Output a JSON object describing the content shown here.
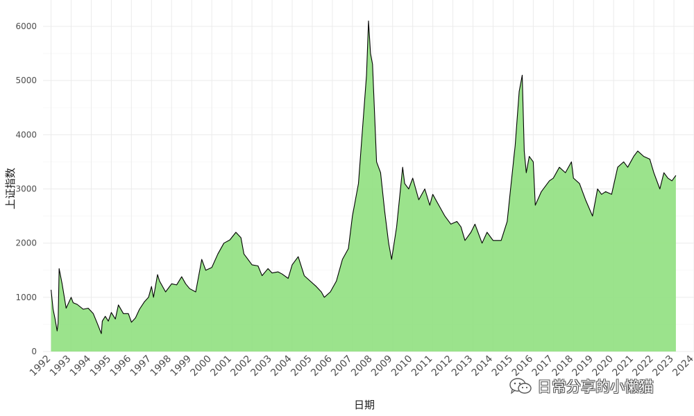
{
  "chart_data": {
    "type": "area",
    "title": "",
    "xlabel": "日期",
    "ylabel": "上证指数",
    "ylim": [
      0,
      6200
    ],
    "yticks": [
      "0",
      "1000",
      "2000",
      "3000",
      "4000",
      "5000",
      "6000"
    ],
    "xticks": [
      "1992",
      "1993",
      "1994",
      "1995",
      "1996",
      "1997",
      "1998",
      "1999",
      "2000",
      "2001",
      "2002",
      "2003",
      "2004",
      "2005",
      "2006",
      "2007",
      "2008",
      "2009",
      "2010",
      "2011",
      "2012",
      "2013",
      "2014",
      "2015",
      "2016",
      "2017",
      "2018",
      "2019",
      "2020",
      "2021",
      "2022",
      "2023",
      "2024"
    ],
    "xlim": [
      1991.6,
      2024.0
    ],
    "grid": true,
    "fill_color": "#90e080",
    "line_color": "#000000",
    "series": [
      {
        "x": [
          1992.0,
          1992.1,
          1992.2,
          1992.3,
          1992.35,
          1992.4,
          1992.55,
          1992.75,
          1993.0,
          1993.1,
          1993.3,
          1993.6,
          1993.85,
          1994.1,
          1994.3,
          1994.5,
          1994.55,
          1994.7,
          1994.85,
          1995.0,
          1995.2,
          1995.35,
          1995.6,
          1995.85,
          1996.0,
          1996.2,
          1996.4,
          1996.65,
          1996.85,
          1997.0,
          1997.1,
          1997.3,
          1997.4,
          1997.7,
          1998.0,
          1998.25,
          1998.5,
          1998.7,
          1998.9,
          1999.2,
          1999.4,
          1999.5,
          1999.7,
          2000.0,
          2000.3,
          2000.6,
          2000.9,
          2001.2,
          2001.45,
          2001.6,
          2001.8,
          2002.0,
          2002.3,
          2002.5,
          2002.8,
          2003.0,
          2003.3,
          2003.5,
          2003.8,
          2004.0,
          2004.3,
          2004.6,
          2004.9,
          2005.2,
          2005.45,
          2005.6,
          2005.9,
          2006.2,
          2006.5,
          2006.8,
          2007.0,
          2007.3,
          2007.5,
          2007.7,
          2007.8,
          2007.9,
          2008.0,
          2008.2,
          2008.4,
          2008.6,
          2008.8,
          2008.95,
          2009.2,
          2009.5,
          2009.6,
          2009.8,
          2010.0,
          2010.3,
          2010.6,
          2010.85,
          2011.0,
          2011.3,
          2011.6,
          2011.9,
          2012.2,
          2012.4,
          2012.6,
          2012.9,
          2013.1,
          2013.45,
          2013.7,
          2014.0,
          2014.4,
          2014.7,
          2014.9,
          2015.1,
          2015.3,
          2015.45,
          2015.55,
          2015.65,
          2015.8,
          2016.0,
          2016.1,
          2016.4,
          2016.8,
          2017.0,
          2017.3,
          2017.6,
          2017.9,
          2018.0,
          2018.3,
          2018.6,
          2018.95,
          2019.2,
          2019.4,
          2019.6,
          2019.9,
          2020.2,
          2020.5,
          2020.7,
          2021.0,
          2021.2,
          2021.5,
          2021.8,
          2022.0,
          2022.3,
          2022.5,
          2022.7,
          2022.9,
          2023.1
        ],
        "y": [
          1140,
          780,
          600,
          380,
          520,
          1530,
          1250,
          800,
          1000,
          900,
          870,
          780,
          800,
          700,
          520,
          330,
          560,
          650,
          560,
          720,
          600,
          860,
          700,
          700,
          540,
          620,
          780,
          920,
          1000,
          1200,
          1000,
          1420,
          1300,
          1100,
          1250,
          1230,
          1380,
          1250,
          1160,
          1100,
          1500,
          1700,
          1500,
          1550,
          1800,
          2000,
          2060,
          2200,
          2100,
          1800,
          1700,
          1600,
          1580,
          1400,
          1530,
          1450,
          1470,
          1430,
          1350,
          1600,
          1750,
          1400,
          1300,
          1200,
          1100,
          1000,
          1100,
          1300,
          1700,
          1900,
          2500,
          3100,
          4100,
          5100,
          6100,
          5500,
          5300,
          3500,
          3300,
          2600,
          2000,
          1700,
          2300,
          3400,
          3100,
          3000,
          3200,
          2800,
          3000,
          2700,
          2900,
          2700,
          2500,
          2350,
          2400,
          2300,
          2050,
          2200,
          2350,
          2000,
          2200,
          2050,
          2050,
          2400,
          3100,
          3800,
          4800,
          5100,
          3700,
          3300,
          3600,
          3500,
          2700,
          2950,
          3150,
          3200,
          3400,
          3300,
          3500,
          3200,
          3100,
          2800,
          2500,
          3000,
          2900,
          2950,
          2900,
          3400,
          3500,
          3400,
          3600,
          3700,
          3600,
          3550,
          3300,
          3000,
          3300,
          3200,
          3150,
          3250
        ]
      }
    ]
  },
  "watermark": {
    "text": "日常分享的小懒猫",
    "icon": "wechat-icon"
  }
}
